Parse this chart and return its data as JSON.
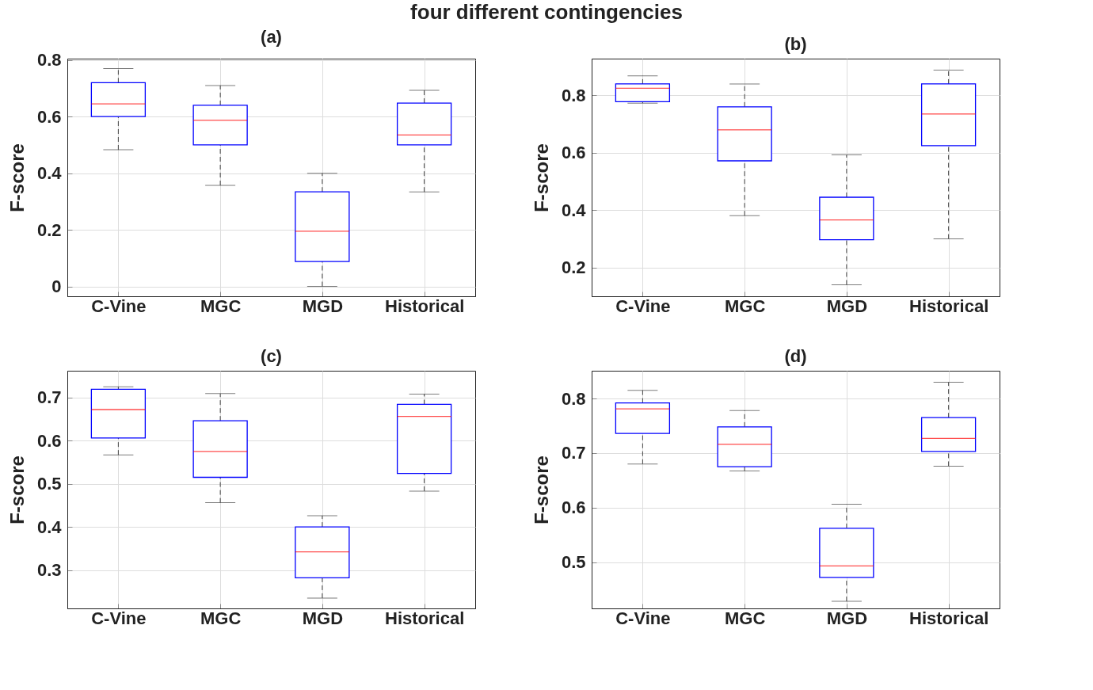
{
  "chart_data": [
    {
      "type": "box",
      "title": "(a)",
      "ylabel": "F-score",
      "annotations": [
        "four different contingencies"
      ],
      "categories": [
        "C-Vine",
        "MGC",
        "MGD",
        "Historical"
      ],
      "ylim": [
        -0.035,
        0.805
      ],
      "yticks": [
        0,
        0.2,
        0.4,
        0.6,
        0.8
      ],
      "grid": true,
      "series": [
        {
          "color": "#0000ff",
          "boxes": [
            {
              "low": 0.483,
              "q1": 0.6,
              "median": 0.645,
              "q3": 0.72,
              "high": 0.77
            },
            {
              "low": 0.357,
              "q1": 0.5,
              "median": 0.587,
              "q3": 0.64,
              "high": 0.71
            },
            {
              "low": 0.0,
              "q1": 0.088,
              "median": 0.195,
              "q3": 0.334,
              "high": 0.4
            },
            {
              "low": 0.334,
              "q1": 0.5,
              "median": 0.535,
              "q3": 0.648,
              "high": 0.693
            }
          ]
        }
      ]
    },
    {
      "type": "box",
      "title": "(b)",
      "ylabel": "F-score",
      "categories": [
        "C-Vine",
        "MGC",
        "MGD",
        "Historical"
      ],
      "ylim": [
        0.1,
        0.928
      ],
      "yticks": [
        0.2,
        0.4,
        0.6,
        0.8
      ],
      "grid": true,
      "series": [
        {
          "color": "#0000ff",
          "boxes": [
            {
              "low": 0.773,
              "q1": 0.778,
              "median": 0.825,
              "q3": 0.84,
              "high": 0.868
            },
            {
              "low": 0.381,
              "q1": 0.572,
              "median": 0.68,
              "q3": 0.76,
              "high": 0.84
            },
            {
              "low": 0.14,
              "q1": 0.297,
              "median": 0.366,
              "q3": 0.445,
              "high": 0.593
            },
            {
              "low": 0.3,
              "q1": 0.625,
              "median": 0.735,
              "q3": 0.84,
              "high": 0.888
            }
          ]
        }
      ]
    },
    {
      "type": "box",
      "title": "(c)",
      "ylabel": "F-score",
      "categories": [
        "C-Vine",
        "MGC",
        "MGD",
        "Historical"
      ],
      "ylim": [
        0.211,
        0.762
      ],
      "yticks": [
        0.3,
        0.4,
        0.5,
        0.6,
        0.7
      ],
      "grid": true,
      "series": [
        {
          "color": "#0000ff",
          "boxes": [
            {
              "low": 0.567,
              "q1": 0.606,
              "median": 0.672,
              "q3": 0.719,
              "high": 0.725
            },
            {
              "low": 0.456,
              "q1": 0.515,
              "median": 0.575,
              "q3": 0.646,
              "high": 0.709
            },
            {
              "low": 0.235,
              "q1": 0.282,
              "median": 0.342,
              "q3": 0.4,
              "high": 0.426
            },
            {
              "low": 0.483,
              "q1": 0.524,
              "median": 0.656,
              "q3": 0.684,
              "high": 0.708
            }
          ]
        }
      ]
    },
    {
      "type": "box",
      "title": "(d)",
      "ylabel": "F-score",
      "categories": [
        "C-Vine",
        "MGC",
        "MGD",
        "Historical"
      ],
      "ylim": [
        0.415,
        0.851
      ],
      "yticks": [
        0.5,
        0.6,
        0.7,
        0.8
      ],
      "grid": true,
      "series": [
        {
          "color": "#0000ff",
          "boxes": [
            {
              "low": 0.68,
              "q1": 0.736,
              "median": 0.781,
              "q3": 0.792,
              "high": 0.815
            },
            {
              "low": 0.667,
              "q1": 0.675,
              "median": 0.716,
              "q3": 0.748,
              "high": 0.778
            },
            {
              "low": 0.428,
              "q1": 0.472,
              "median": 0.493,
              "q3": 0.562,
              "high": 0.606
            },
            {
              "low": 0.676,
              "q1": 0.703,
              "median": 0.727,
              "q3": 0.765,
              "high": 0.83
            }
          ]
        }
      ]
    }
  ]
}
